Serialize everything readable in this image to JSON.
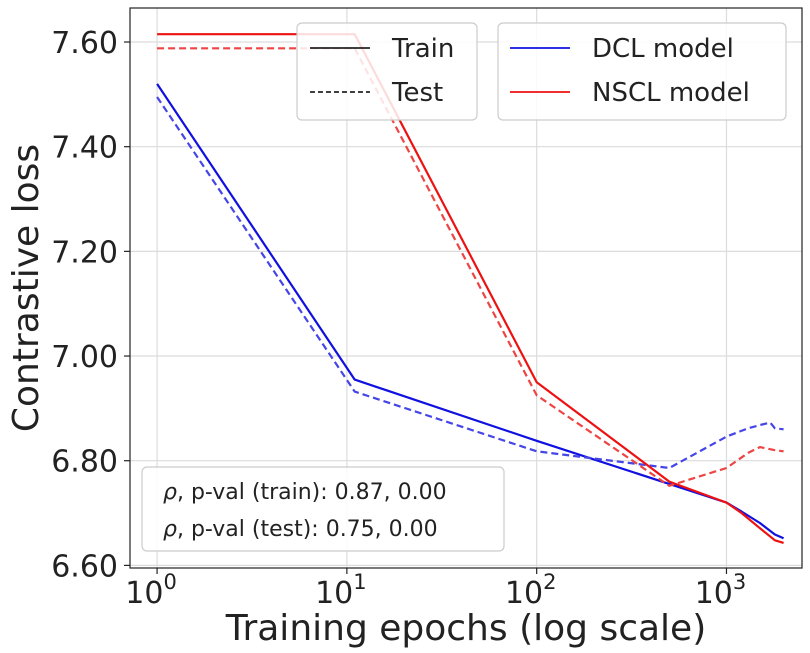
{
  "chart_data": {
    "type": "line",
    "xscale": "log",
    "xlabel": "Training epochs (log scale)",
    "ylabel": "Contrastive loss",
    "xlim": [
      0.72,
      2500
    ],
    "ylim": [
      6.595,
      7.665
    ],
    "grid": true,
    "x_ticks": [
      {
        "value": 1,
        "label": "10",
        "exp": "0"
      },
      {
        "value": 10,
        "label": "10",
        "exp": "1"
      },
      {
        "value": 100,
        "label": "10",
        "exp": "2"
      },
      {
        "value": 1000,
        "label": "10",
        "exp": "3"
      }
    ],
    "y_ticks": [
      {
        "value": 6.6,
        "label": "6.60"
      },
      {
        "value": 6.8,
        "label": "6.80"
      },
      {
        "value": 7.0,
        "label": "7.00"
      },
      {
        "value": 7.2,
        "label": "7.20"
      },
      {
        "value": 7.4,
        "label": "7.40"
      },
      {
        "value": 7.6,
        "label": "7.60"
      }
    ],
    "series": [
      {
        "name": "DCL model (train)",
        "model": "DCL model",
        "split": "Train",
        "color": "#1010e0",
        "dashed": false,
        "x": [
          1,
          11,
          100,
          1000,
          1200,
          1500,
          1800,
          2000
        ],
        "y": [
          7.52,
          6.955,
          6.838,
          6.72,
          6.703,
          6.681,
          6.659,
          6.652
        ]
      },
      {
        "name": "DCL model (test)",
        "model": "DCL model",
        "split": "Test",
        "color": "#4545e8",
        "dashed": true,
        "x": [
          1,
          11,
          100,
          500,
          1000,
          1300,
          1500,
          1700,
          1800,
          2000
        ],
        "y": [
          7.495,
          6.932,
          6.818,
          6.786,
          6.846,
          6.862,
          6.868,
          6.873,
          6.862,
          6.86
        ]
      },
      {
        "name": "NSCL model (train)",
        "model": "NSCL model",
        "split": "Train",
        "color": "#ee1111",
        "dashed": false,
        "x": [
          1,
          11,
          100,
          500,
          1000,
          1200,
          1500,
          1800,
          2000
        ],
        "y": [
          7.615,
          7.615,
          6.95,
          6.76,
          6.72,
          6.7,
          6.671,
          6.648,
          6.643
        ]
      },
      {
        "name": "NSCL model (test)",
        "model": "NSCL model",
        "split": "Test",
        "color": "#ee4444",
        "dashed": true,
        "x": [
          1,
          11,
          100,
          500,
          1000,
          1300,
          1500,
          1800,
          2000
        ],
        "y": [
          7.588,
          7.588,
          6.925,
          6.752,
          6.786,
          6.815,
          6.826,
          6.82,
          6.818
        ]
      }
    ],
    "legend_style": {
      "title": "",
      "entries": [
        {
          "label": "Train",
          "color": "#000000",
          "dashed": false
        },
        {
          "label": "Test",
          "color": "#000000",
          "dashed": true
        }
      ],
      "placement": "top-center"
    },
    "legend_model": {
      "entries": [
        {
          "label": "DCL model",
          "color": "#1010e0",
          "dashed": false
        },
        {
          "label": "NSCL model",
          "color": "#ee1111",
          "dashed": false
        }
      ],
      "placement": "top-right"
    },
    "annotation": {
      "rho_symbol": "ρ",
      "train_text": ", p-val (train):  0.87, 0.00",
      "test_text": ", p-val (test):  0.75, 0.00",
      "placement": "bottom-left"
    }
  }
}
